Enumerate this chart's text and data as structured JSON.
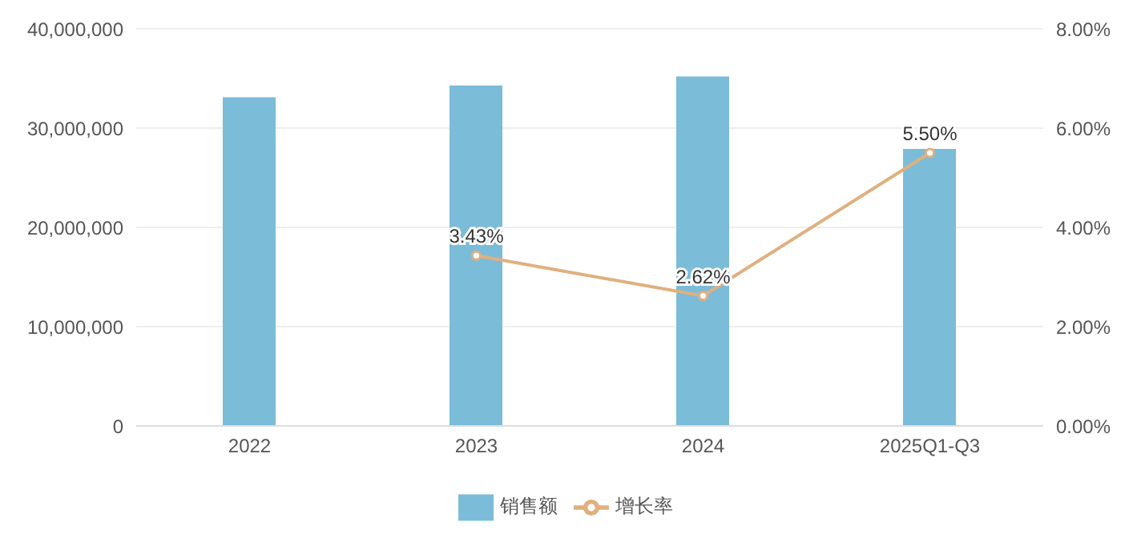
{
  "chart_data": {
    "type": "bar",
    "categories": [
      "2022",
      "2023",
      "2024",
      "2025Q1-Q3"
    ],
    "series": [
      {
        "name": "销售额",
        "color": "#7bbcd9",
        "values": [
          33100000,
          34300000,
          35200000,
          27900000
        ]
      },
      {
        "name": "增长率",
        "type": "line",
        "axis": "y2",
        "color": "#e0b07f",
        "marker": "circle",
        "values": [
          null,
          3.43,
          2.62,
          5.5
        ],
        "value_labels": [
          null,
          "3.43%",
          "2.62%",
          "5.50%"
        ]
      }
    ],
    "ylim": [
      0,
      40000000
    ],
    "yticks": [
      {
        "value": 0,
        "label": "0"
      },
      {
        "value": 10000000,
        "label": "10,000,000"
      },
      {
        "value": 20000000,
        "label": "20,000,000"
      },
      {
        "value": 30000000,
        "label": "30,000,000"
      },
      {
        "value": 40000000,
        "label": "40,000,000"
      }
    ],
    "y2lim": [
      0,
      8
    ],
    "y2ticks": [
      {
        "value": 0,
        "label": "0.00%"
      },
      {
        "value": 2,
        "label": "2.00%"
      },
      {
        "value": 4,
        "label": "4.00%"
      },
      {
        "value": 6,
        "label": "6.00%"
      },
      {
        "value": 8,
        "label": "8.00%"
      }
    ],
    "grid": "y",
    "legend": "bottom"
  }
}
